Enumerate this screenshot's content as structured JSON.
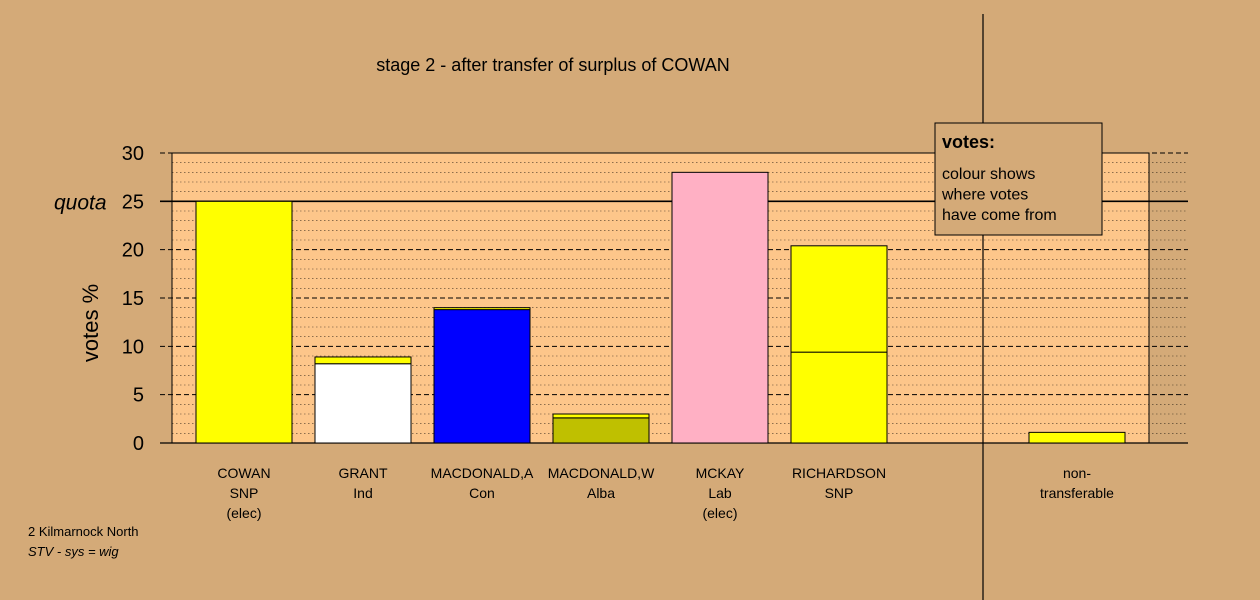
{
  "colors": {
    "background": "#d4aa78",
    "plot_area": "#fdc68a",
    "cowan_snp": "#ffff00",
    "grant_ind": "#ffffff",
    "macdonald_a_con": "#0000ff",
    "macdonald_w_alba": "#bfc000",
    "mckay_lab": "#ffb0c4",
    "legend_box": "#d4aa78"
  },
  "chart_data": {
    "type": "bar",
    "title": "stage 2 - after transfer of surplus of COWAN",
    "ylabel": "votes %",
    "ylim": [
      0,
      30
    ],
    "yticks": [
      "0",
      "5",
      "10",
      "15",
      "20",
      "25",
      "30"
    ],
    "quota_label": "quota",
    "quota": 25,
    "grid": true,
    "legend": {
      "position": "top-right",
      "title": "votes:",
      "lines": [
        "colour shows",
        "where votes",
        "have come from"
      ]
    },
    "categories": [
      {
        "label": [
          "COWAN",
          "SNP",
          "(elec)"
        ],
        "segments": [
          {
            "value": 25,
            "color": "#ffff00"
          }
        ]
      },
      {
        "label": [
          "GRANT",
          "Ind"
        ],
        "segments": [
          {
            "value": 8.2,
            "color": "#ffffff"
          },
          {
            "value": 0.7,
            "color": "#ffff00"
          }
        ]
      },
      {
        "label": [
          "MACDONALD,A",
          "Con"
        ],
        "segments": [
          {
            "value": 13.8,
            "color": "#0000ff"
          },
          {
            "value": 0.2,
            "color": "#ffff00"
          }
        ]
      },
      {
        "label": [
          "MACDONALD,W",
          "Alba"
        ],
        "segments": [
          {
            "value": 2.6,
            "color": "#bfc000"
          },
          {
            "value": 0.4,
            "color": "#ffff00"
          }
        ]
      },
      {
        "label": [
          "MCKAY",
          "Lab",
          "(elec)"
        ],
        "segments": [
          {
            "value": 28,
            "color": "#ffb0c4"
          }
        ]
      },
      {
        "label": [
          "RICHARDSON",
          "SNP"
        ],
        "segments": [
          {
            "value": 9.4,
            "color": "#ffff00"
          },
          {
            "value": 11,
            "color": "#ffff00"
          }
        ]
      },
      {
        "label": [],
        "segments": []
      },
      {
        "label": [
          "non-",
          "transferable"
        ],
        "segments": [
          {
            "value": 1.1,
            "color": "#ffff00"
          }
        ]
      }
    ]
  },
  "footer": {
    "line1": "2 Kilmarnock North",
    "line2": "STV - sys = wig"
  }
}
